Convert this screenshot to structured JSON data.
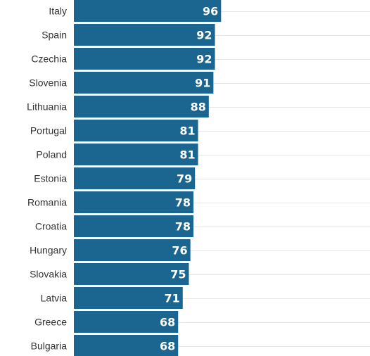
{
  "chart_data": {
    "type": "bar",
    "orientation": "horizontal",
    "categories": [
      "Italy",
      "Spain",
      "Czechia",
      "Slovenia",
      "Lithuania",
      "Portugal",
      "Poland",
      "Estonia",
      "Romania",
      "Croatia",
      "Hungary",
      "Slovakia",
      "Latvia",
      "Greece",
      "Bulgaria"
    ],
    "values": [
      96,
      92,
      92,
      91,
      88,
      81,
      81,
      79,
      78,
      78,
      76,
      75,
      71,
      68,
      68
    ],
    "title": "",
    "xlabel": "",
    "ylabel": "",
    "xlim": [
      0,
      100
    ],
    "grid": true,
    "bar_color": "#1a6690",
    "value_label_color": "#ffffff"
  }
}
